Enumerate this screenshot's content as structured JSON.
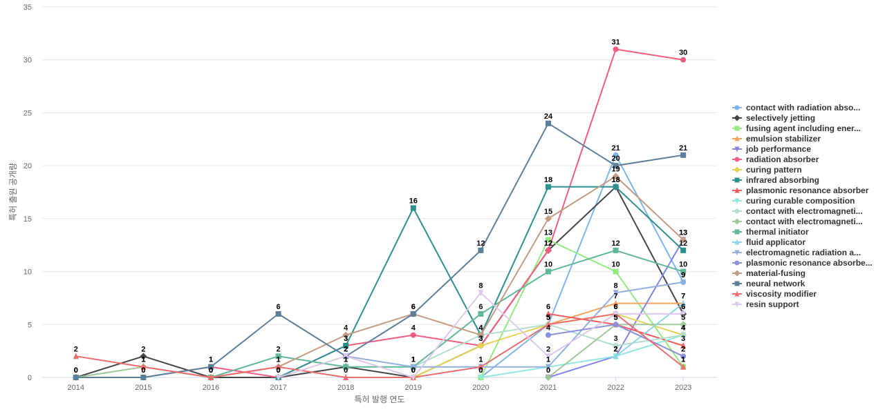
{
  "chart_data": {
    "type": "line",
    "xlabel": "특허 발행 연도",
    "ylabel": "특허 출원 공개량",
    "ylim": [
      0,
      35
    ],
    "yticks": [
      0,
      5,
      10,
      15,
      20,
      25,
      30,
      35
    ],
    "grid": true,
    "legend_position": "right",
    "x": [
      "2014",
      "2015",
      "2016",
      "2017",
      "2018",
      "2019",
      "2020",
      "2021",
      "2022",
      "2023"
    ],
    "series": [
      {
        "name": "contact with radiation abso...",
        "color": "#7cb5ec",
        "marker": "circle",
        "values": [
          null,
          null,
          null,
          null,
          null,
          null,
          0,
          5,
          21,
          9
        ]
      },
      {
        "name": "selectively jetting",
        "color": "#434348",
        "marker": "diamond",
        "values": [
          0,
          2,
          0,
          0,
          1,
          0,
          3,
          12,
          18,
          6
        ]
      },
      {
        "name": "fusing agent including ener...",
        "color": "#90ed7d",
        "marker": "square",
        "values": [
          null,
          null,
          null,
          null,
          null,
          null,
          0,
          13,
          10,
          1
        ]
      },
      {
        "name": "emulsion stabilizer",
        "color": "#f7a35c",
        "marker": "triangle",
        "values": [
          null,
          null,
          null,
          null,
          null,
          null,
          null,
          5,
          7,
          7
        ]
      },
      {
        "name": "job performance",
        "color": "#8085e9",
        "marker": "triangle-down",
        "values": [
          null,
          null,
          null,
          null,
          null,
          null,
          null,
          0,
          2,
          13
        ]
      },
      {
        "name": "radiation absorber",
        "color": "#f15c80",
        "marker": "circle",
        "values": [
          null,
          0,
          1,
          0,
          3,
          4,
          3,
          12,
          31,
          30
        ]
      },
      {
        "name": "curing pattern",
        "color": "#e4d354",
        "marker": "diamond",
        "values": [
          null,
          null,
          null,
          null,
          null,
          0,
          3,
          5,
          6,
          4
        ]
      },
      {
        "name": "infrared absorbing",
        "color": "#2b908f",
        "marker": "square",
        "values": [
          null,
          null,
          null,
          0,
          3,
          16,
          4,
          18,
          18,
          12
        ]
      },
      {
        "name": "plasmonic resonance absorber",
        "color": "#f45b5b",
        "marker": "triangle",
        "values": [
          null,
          null,
          null,
          null,
          null,
          null,
          null,
          6,
          5,
          3
        ]
      },
      {
        "name": "curing curable composition",
        "color": "#91e8e1",
        "marker": "triangle-down",
        "values": [
          null,
          null,
          null,
          null,
          null,
          null,
          0,
          1,
          2,
          4
        ]
      },
      {
        "name": "contact with electromagneti...",
        "color": "#b2dfcc",
        "marker": "circle",
        "values": [
          null,
          null,
          null,
          null,
          null,
          1,
          4,
          5,
          3,
          4
        ]
      },
      {
        "name": "contact with electromagneti...",
        "color": "#9fc79a",
        "marker": "diamond",
        "values": [
          0,
          1,
          0,
          null,
          null,
          null,
          null,
          0,
          5,
          5
        ]
      },
      {
        "name": "thermal initiator",
        "color": "#5fb899",
        "marker": "square",
        "values": [
          null,
          null,
          0,
          2,
          1,
          1,
          6,
          10,
          12,
          10
        ]
      },
      {
        "name": "fluid applicator",
        "color": "#8ed4e8",
        "marker": "triangle",
        "values": [
          null,
          null,
          null,
          null,
          null,
          null,
          null,
          null,
          2,
          7
        ]
      },
      {
        "name": "electromagnetic radiation a...",
        "color": "#8fb0e0",
        "marker": "triangle-down",
        "values": [
          null,
          null,
          null,
          null,
          2,
          1,
          1,
          1,
          8,
          9
        ]
      },
      {
        "name": "plasmonic resonance absorbe...",
        "color": "#8c8fdb",
        "marker": "circle",
        "values": [
          null,
          null,
          null,
          null,
          null,
          null,
          null,
          4,
          5,
          2
        ]
      },
      {
        "name": "material-fusing",
        "color": "#c49a82",
        "marker": "diamond",
        "values": [
          null,
          1,
          0,
          1,
          4,
          6,
          4,
          15,
          19,
          13
        ]
      },
      {
        "name": "neural network",
        "color": "#5c7f99",
        "marker": "square",
        "values": [
          0,
          0,
          1,
          6,
          2,
          6,
          12,
          24,
          20,
          21
        ]
      },
      {
        "name": "viscosity modifier",
        "color": "#ec6d6d",
        "marker": "triangle",
        "values": [
          2,
          1,
          0,
          1,
          0,
          0,
          1,
          5,
          6,
          1
        ]
      },
      {
        "name": "resin support",
        "color": "#dcc8e8",
        "marker": "triangle-down",
        "values": [
          null,
          null,
          null,
          0,
          2,
          0,
          8,
          2,
          6,
          6
        ]
      }
    ]
  }
}
